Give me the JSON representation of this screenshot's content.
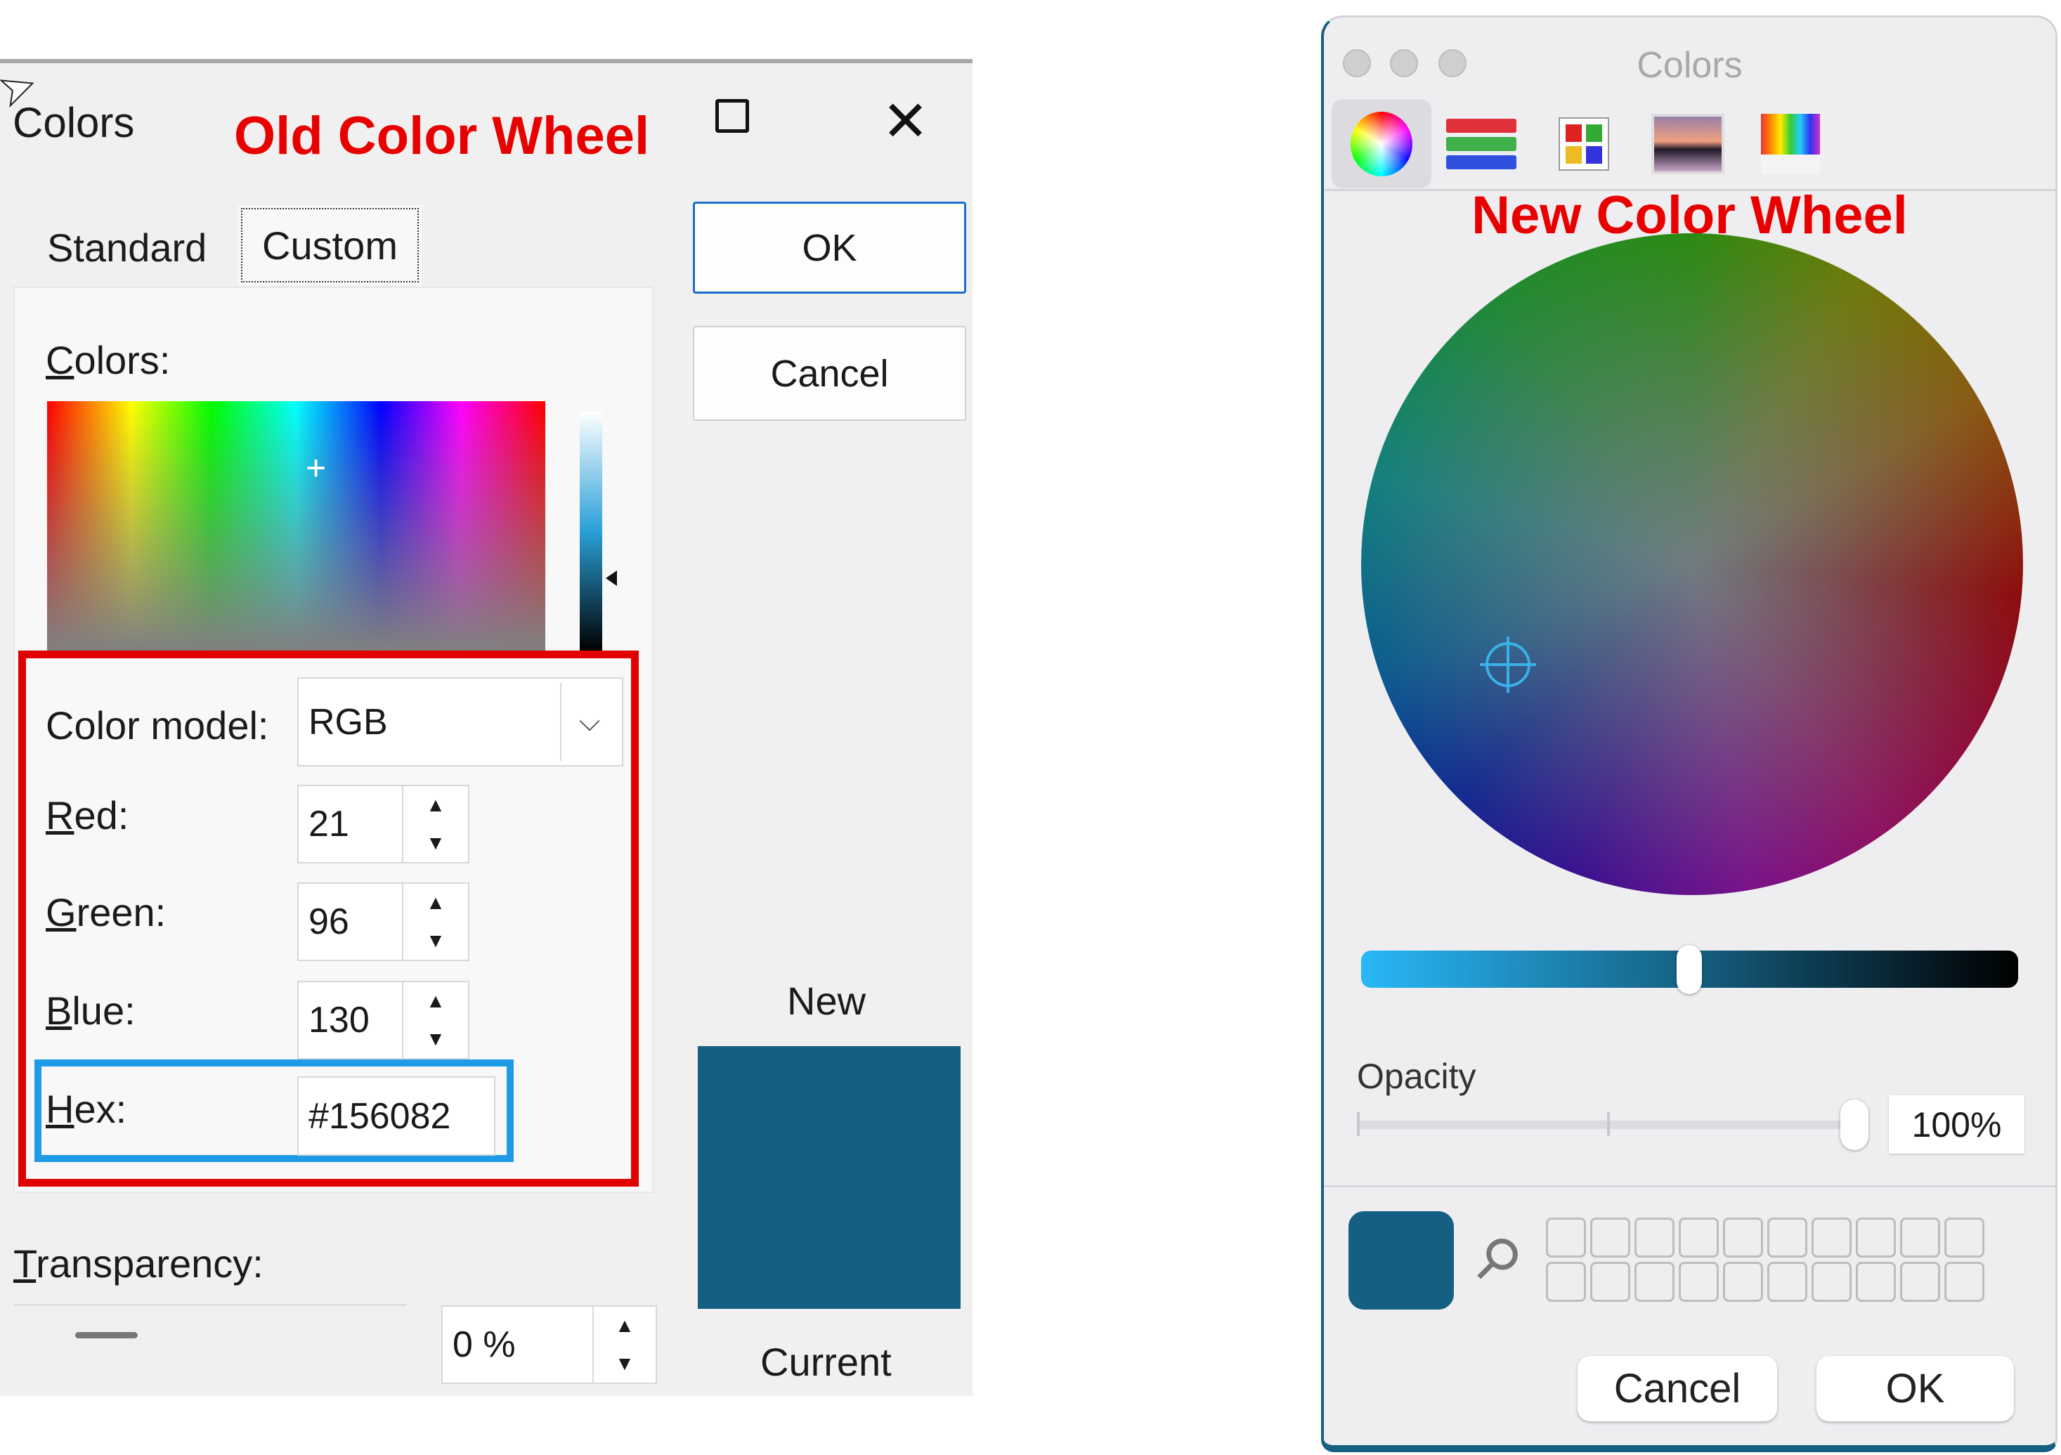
{
  "old_dialog": {
    "title": "Colors",
    "annotation": "Old Color Wheel",
    "tabs": [
      {
        "label": "Standard",
        "selected": false
      },
      {
        "label": "Custom",
        "selected": true
      }
    ],
    "ok_label": "OK",
    "cancel_label": "Cancel",
    "colors_label": "Colors:",
    "color_model_label": "Color model:",
    "color_model_value": "RGB",
    "red_label": "Red:",
    "red_value": "21",
    "green_label": "Green:",
    "green_value": "96",
    "blue_label": "Blue:",
    "blue_value": "130",
    "hex_label": "Hex:",
    "hex_value": "#156082",
    "new_label": "New",
    "current_label": "Current",
    "transparency_label": "Transparency:",
    "transparency_value": "0 %",
    "swatch_color": "#156082",
    "highlight_colors": {
      "red_box": "#e00000",
      "blue_box": "#1e9be6"
    }
  },
  "mac_panel": {
    "title": "Colors",
    "annotation": "New Color Wheel",
    "toolbar": [
      "color-wheel-icon",
      "color-sliders-icon",
      "color-palettes-icon",
      "image-palettes-icon",
      "pencils-icon"
    ],
    "selected_tool": "color-wheel-icon",
    "brightness_fraction": 0.5,
    "opacity_label": "Opacity",
    "opacity_value": "100%",
    "current_color": "#156082",
    "cancel_label": "Cancel",
    "ok_label": "OK"
  }
}
